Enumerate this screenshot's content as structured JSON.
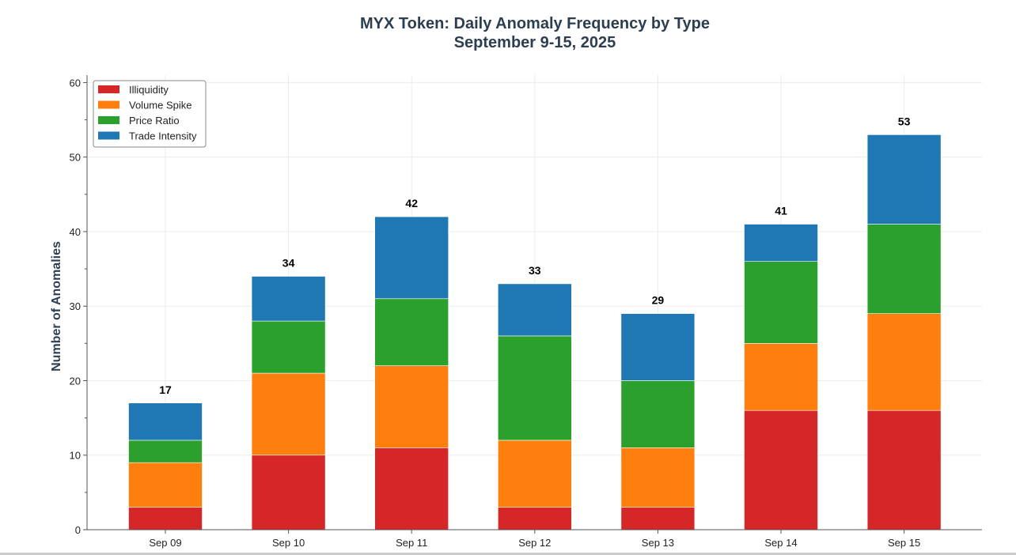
{
  "chart_data": {
    "type": "bar",
    "stacked": true,
    "title": "MYX Token: Daily Anomaly Frequency by Type",
    "subtitle": "September 9-15, 2025",
    "xlabel": "",
    "ylabel": "Number of Anomalies",
    "ylim": [
      0,
      61
    ],
    "yticks": [
      0,
      10,
      20,
      30,
      40,
      50,
      60
    ],
    "grid": true,
    "legend_position": "top-left",
    "categories": [
      "Sep 09",
      "Sep 10",
      "Sep 11",
      "Sep 12",
      "Sep 13",
      "Sep 14",
      "Sep 15"
    ],
    "series": [
      {
        "name": "Illiquidity",
        "color": "#d62728",
        "values": [
          3,
          10,
          11,
          3,
          3,
          16,
          16
        ]
      },
      {
        "name": "Volume Spike",
        "color": "#ff7f0e",
        "values": [
          6,
          11,
          11,
          9,
          8,
          9,
          13
        ]
      },
      {
        "name": "Price Ratio",
        "color": "#2ca02c",
        "values": [
          3,
          7,
          9,
          14,
          9,
          11,
          12
        ]
      },
      {
        "name": "Trade Intensity",
        "color": "#1f77b4",
        "values": [
          5,
          6,
          11,
          7,
          9,
          5,
          12
        ]
      }
    ],
    "totals": [
      17,
      34,
      42,
      33,
      29,
      41,
      53
    ]
  }
}
